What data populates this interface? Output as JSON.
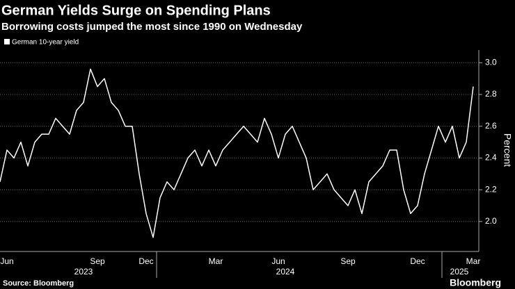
{
  "chart_data": {
    "type": "line",
    "title": "German Yields Surge on Spending Plans",
    "subtitle": "Borrowing costs jumped the most since 1990 on Wednesday",
    "y_label": "Percent",
    "source": "Source: Bloomberg",
    "brand": "Bloomberg",
    "categories": [
      null,
      "Jun",
      null,
      null,
      null,
      null,
      null,
      null,
      null,
      null,
      null,
      null,
      null,
      null,
      "Sep",
      null,
      null,
      null,
      null,
      null,
      null,
      "Dec",
      null,
      null,
      null,
      null,
      null,
      null,
      null,
      null,
      null,
      "Mar",
      null,
      null,
      null,
      null,
      null,
      null,
      null,
      null,
      "Jun",
      null,
      null,
      null,
      null,
      null,
      null,
      null,
      null,
      null,
      "Sep",
      null,
      null,
      null,
      null,
      null,
      null,
      null,
      null,
      null,
      "Dec",
      null,
      null,
      null,
      null,
      null,
      null,
      null,
      "Mar"
    ],
    "year_labels": [
      {
        "value": 12,
        "label": "2023"
      },
      {
        "value": 41,
        "label": "2024"
      },
      {
        "value": 66,
        "label": "2025"
      }
    ],
    "series": [
      {
        "name": "German 10-year yield",
        "color": "#ffffff",
        "values": [
          2.25,
          2.45,
          2.4,
          2.5,
          2.35,
          2.5,
          2.55,
          2.55,
          2.65,
          2.6,
          2.55,
          2.7,
          2.75,
          2.96,
          2.85,
          2.9,
          2.75,
          2.7,
          2.6,
          2.6,
          2.3,
          2.05,
          1.9,
          2.15,
          2.25,
          2.2,
          2.3,
          2.4,
          2.45,
          2.35,
          2.45,
          2.35,
          2.45,
          2.5,
          2.55,
          2.6,
          2.55,
          2.5,
          2.65,
          2.55,
          2.4,
          2.55,
          2.6,
          2.5,
          2.4,
          2.2,
          2.25,
          2.3,
          2.2,
          2.15,
          2.1,
          2.2,
          2.05,
          2.25,
          2.3,
          2.35,
          2.45,
          2.45,
          2.2,
          2.05,
          2.1,
          2.3,
          2.45,
          2.6,
          2.5,
          2.6,
          2.4,
          2.5,
          2.85
        ]
      }
    ],
    "ylim": [
      1.82,
      3.08
    ],
    "yticks": [
      {
        "value": 2,
        "label": "2.0"
      },
      2.2,
      2.4,
      2.6,
      2.8,
      {
        "value": 3,
        "label": "3.0"
      }
    ],
    "grid": true
  }
}
